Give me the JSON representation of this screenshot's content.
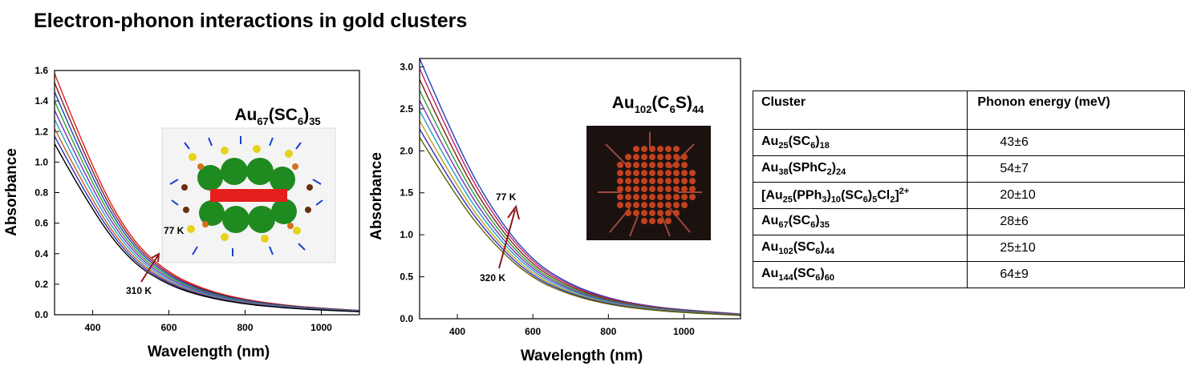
{
  "title": "Electron-phonon interactions in gold clusters",
  "chart_data": [
    {
      "type": "line",
      "name": "Au67(SC6)35 absorption spectra",
      "xlabel": "Wavelength (nm)",
      "ylabel": "Absorbance",
      "xlim": [
        300,
        1100
      ],
      "ylim": [
        0,
        1.6
      ],
      "xticks": [
        400,
        600,
        800,
        1000
      ],
      "yticks": [
        0.0,
        0.2,
        0.4,
        0.6,
        0.8,
        1.0,
        1.2,
        1.4,
        1.6
      ],
      "ytick_labels": [
        "0.0",
        "0.2",
        "0.4",
        "0.6",
        "0.8",
        "1.0",
        "1.2",
        "1.4",
        "1.6"
      ],
      "xtick_labels": [
        "400",
        "600",
        "800",
        "1000"
      ],
      "inset_label": {
        "base": "Au",
        "s1": "67",
        "mid": "(SC",
        "s2": "6",
        "end": ")",
        "s3": "35"
      },
      "annotations": {
        "high": "77 K",
        "low": "310 K"
      },
      "series_template": {
        "x": [
          300,
          400,
          500,
          600,
          700,
          800,
          900,
          1000,
          1100
        ],
        "y": [
          1.0,
          0.6,
          0.31,
          0.17,
          0.1,
          0.062,
          0.04,
          0.027,
          0.018
        ]
      },
      "series_scales": [
        1.58,
        1.52,
        1.46,
        1.4,
        1.34,
        1.28,
        1.22,
        1.17,
        1.12
      ],
      "series_colors": [
        "#e31a1c",
        "#7a1f1f",
        "#1f3fbf",
        "#2aa02a",
        "#7b2cbf",
        "#1fa0c8",
        "#c06020",
        "#3030c0",
        "#000000"
      ]
    },
    {
      "type": "line",
      "name": "Au102(C6S)44 absorption spectra",
      "xlabel": "Wavelength (nm)",
      "ylabel": "Absorbance",
      "xlim": [
        300,
        1150
      ],
      "ylim": [
        0,
        3.1
      ],
      "xticks": [
        400,
        600,
        800,
        1000
      ],
      "yticks": [
        0.0,
        0.5,
        1.0,
        1.5,
        2.0,
        2.5,
        3.0
      ],
      "ytick_labels": [
        "0.0",
        "0.5",
        "1.0",
        "1.5",
        "2.0",
        "2.5",
        "3.0"
      ],
      "xtick_labels": [
        "400",
        "600",
        "800",
        "1000"
      ],
      "inset_label": {
        "base": "Au",
        "s1": "102",
        "mid": "(C",
        "s2": "6",
        "end": "S)",
        "s3": "44"
      },
      "annotations": {
        "high": "77 K",
        "low": "320 K"
      },
      "series_template": {
        "x": [
          300,
          400,
          500,
          600,
          700,
          800,
          900,
          1000,
          1150
        ],
        "y": [
          1.0,
          0.66,
          0.4,
          0.22,
          0.13,
          0.078,
          0.05,
          0.034,
          0.018
        ]
      },
      "series_scales": [
        3.1,
        2.98,
        2.85,
        2.72,
        2.6,
        2.48,
        2.36,
        2.26,
        2.16
      ],
      "series_colors": [
        "#1f3fbf",
        "#c02060",
        "#7a1f1f",
        "#2aa02a",
        "#7b2cbf",
        "#1fa0c8",
        "#c0a020",
        "#3030c0",
        "#606000"
      ]
    }
  ],
  "table": {
    "headers": [
      "Cluster",
      "Phonon energy (meV)"
    ],
    "rows": [
      {
        "cluster": {
          "a": "Au",
          "b": "25",
          "c": "(SC",
          "d": "6",
          "e": ")",
          "f": "18",
          "g": "",
          "h": ""
        },
        "energy": "43±6"
      },
      {
        "cluster": {
          "a": "Au",
          "b": "38",
          "c": "(SPhC",
          "d": "2",
          "e": ")",
          "f": "24",
          "g": "",
          "h": ""
        },
        "energy": "54±7"
      },
      {
        "cluster": {
          "a": "[Au",
          "b": "25",
          "c": "(PPh",
          "d": "3",
          "e": ")",
          "f": "10",
          "g": "(SC",
          "h": "6"
        },
        "extra": {
          "i": ")",
          "j": "5",
          "k": "Cl",
          "l": "2",
          "m": "]",
          "n": "2+"
        },
        "energy": "20±10"
      },
      {
        "cluster": {
          "a": "Au",
          "b": "67",
          "c": "(SC",
          "d": "6",
          "e": ")",
          "f": "35",
          "g": "",
          "h": ""
        },
        "energy": "28±6"
      },
      {
        "cluster": {
          "a": "Au",
          "b": "102",
          "c": "(SC",
          "d": "6",
          "e": ")",
          "f": "44",
          "g": "",
          "h": ""
        },
        "energy": "25±10"
      },
      {
        "cluster": {
          "a": "Au",
          "b": "144",
          "c": "(SC",
          "d": "6",
          "e": ")",
          "f": "60",
          "g": "",
          "h": ""
        },
        "energy": "64±9"
      }
    ]
  }
}
